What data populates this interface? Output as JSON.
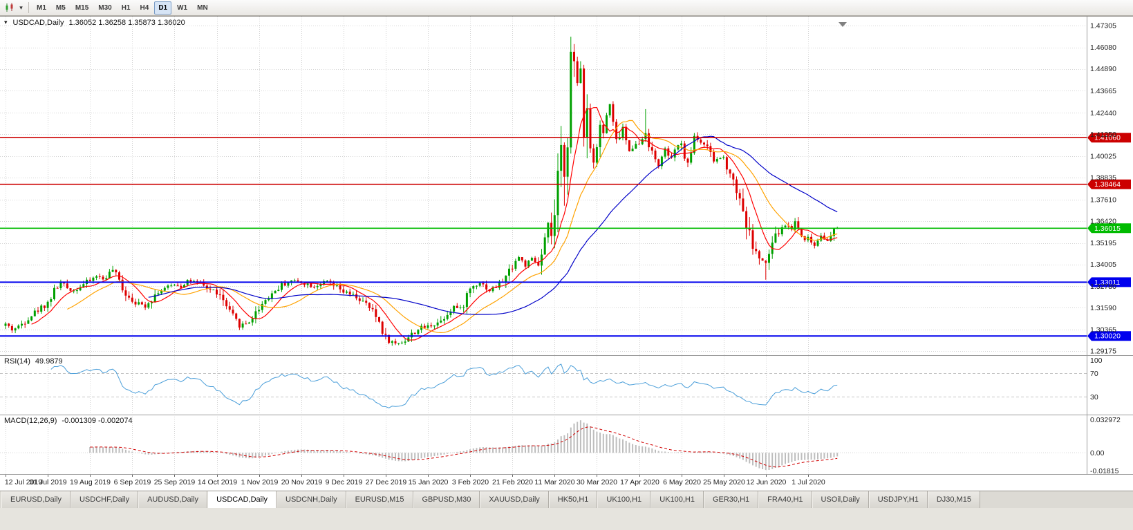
{
  "glyphs": {
    "caret_down": "▾"
  },
  "toolbar": {
    "timeframes": [
      {
        "label": "M1",
        "active": false
      },
      {
        "label": "M5",
        "active": false
      },
      {
        "label": "M15",
        "active": false
      },
      {
        "label": "M30",
        "active": false
      },
      {
        "label": "H1",
        "active": false
      },
      {
        "label": "H4",
        "active": false
      },
      {
        "label": "D1",
        "active": true
      },
      {
        "label": "W1",
        "active": false
      },
      {
        "label": "MN",
        "active": false
      }
    ]
  },
  "chart_data": {
    "type": "candlestick",
    "symbol_period": "USDCAD,Daily",
    "ohlc_text": "1.36052 1.36258 1.35873 1.36020",
    "x_ticks": [
      "12 Jul 2019",
      "31 Jul 2019",
      "19 Aug 2019",
      "6 Sep 2019",
      "25 Sep 2019",
      "14 Oct 2019",
      "1 Nov 2019",
      "20 Nov 2019",
      "9 Dec 2019",
      "27 Dec 2019",
      "15 Jan 2020",
      "3 Feb 2020",
      "21 Feb 2020",
      "11 Mar 2020",
      "30 Mar 2020",
      "17 Apr 2020",
      "6 May 2020",
      "25 May 2020",
      "12 Jun 2020",
      "1 Jul 2020"
    ],
    "y_ticks": [
      "1.47305",
      "1.46080",
      "1.44890",
      "1.43665",
      "1.42440",
      "1.41250",
      "1.40025",
      "1.38835",
      "1.37610",
      "1.36420",
      "1.35195",
      "1.34005",
      "1.32780",
      "1.31590",
      "1.30365",
      "1.29175"
    ],
    "y_range": [
      1.2895,
      1.478
    ],
    "candle_count": 257,
    "seed": 42,
    "vol_base": 0.0016,
    "vol_mult": 1.0,
    "close_anchors": [
      [
        0,
        1.3068
      ],
      [
        2,
        1.3038
      ],
      [
        4,
        1.3052
      ],
      [
        7,
        1.3105
      ],
      [
        10,
        1.3148
      ],
      [
        13,
        1.3188
      ],
      [
        15,
        1.3252
      ],
      [
        17,
        1.33
      ],
      [
        19,
        1.327
      ],
      [
        21,
        1.3255
      ],
      [
        24,
        1.329
      ],
      [
        26,
        1.331
      ],
      [
        28,
        1.3338
      ],
      [
        30,
        1.3318
      ],
      [
        33,
        1.337
      ],
      [
        35,
        1.3305
      ],
      [
        37,
        1.324
      ],
      [
        39,
        1.3205
      ],
      [
        41,
        1.318
      ],
      [
        43,
        1.3172
      ],
      [
        45,
        1.321
      ],
      [
        47,
        1.325
      ],
      [
        50,
        1.3272
      ],
      [
        52,
        1.3292
      ],
      [
        54,
        1.3278
      ],
      [
        56,
        1.3312
      ],
      [
        58,
        1.33
      ],
      [
        60,
        1.329
      ],
      [
        62,
        1.3268
      ],
      [
        65,
        1.3245
      ],
      [
        67,
        1.3195
      ],
      [
        69,
        1.313
      ],
      [
        71,
        1.3085
      ],
      [
        72,
        1.3062
      ],
      [
        74,
        1.3072
      ],
      [
        75,
        1.3085
      ],
      [
        77,
        1.313
      ],
      [
        78,
        1.316
      ],
      [
        80,
        1.3205
      ],
      [
        83,
        1.3255
      ],
      [
        85,
        1.3285
      ],
      [
        88,
        1.331
      ],
      [
        91,
        1.3302
      ],
      [
        93,
        1.329
      ],
      [
        95,
        1.3278
      ],
      [
        97,
        1.3295
      ],
      [
        99,
        1.3302
      ],
      [
        101,
        1.328
      ],
      [
        104,
        1.3246
      ],
      [
        106,
        1.3232
      ],
      [
        108,
        1.3218
      ],
      [
        110,
        1.319
      ],
      [
        112,
        1.3158
      ],
      [
        114,
        1.311
      ],
      [
        115,
        1.308
      ],
      [
        117,
        1.2992
      ],
      [
        119,
        1.2968
      ],
      [
        120,
        1.2958
      ],
      [
        122,
        1.2972
      ],
      [
        123,
        1.2978
      ],
      [
        125,
        1.301
      ],
      [
        127,
        1.304
      ],
      [
        130,
        1.3056
      ],
      [
        132,
        1.307
      ],
      [
        134,
        1.3088
      ],
      [
        136,
        1.313
      ],
      [
        138,
        1.3168
      ],
      [
        140,
        1.3145
      ],
      [
        141,
        1.3185
      ],
      [
        143,
        1.3268
      ],
      [
        146,
        1.3302
      ],
      [
        148,
        1.327
      ],
      [
        149,
        1.3255
      ],
      [
        151,
        1.3278
      ],
      [
        152,
        1.3292
      ],
      [
        154,
        1.333
      ],
      [
        156,
        1.3398
      ],
      [
        158,
        1.3442
      ],
      [
        160,
        1.3395
      ],
      [
        162,
        1.343
      ],
      [
        164,
        1.3395
      ],
      [
        165,
        1.344
      ],
      [
        166,
        1.353
      ],
      [
        167,
        1.36
      ],
      [
        168,
        1.356
      ],
      [
        169,
        1.366
      ],
      [
        170,
        1.386
      ],
      [
        171,
        1.402
      ],
      [
        172,
        1.396
      ],
      [
        173,
        1.412
      ],
      [
        174,
        1.456
      ],
      [
        175,
        1.449
      ],
      [
        176,
        1.439
      ],
      [
        177,
        1.45
      ],
      [
        178,
        1.415
      ],
      [
        179,
        1.429
      ],
      [
        180,
        1.405
      ],
      [
        181,
        1.399
      ],
      [
        182,
        1.4062
      ],
      [
        183,
        1.418
      ],
      [
        184,
        1.412
      ],
      [
        185,
        1.423
      ],
      [
        186,
        1.429
      ],
      [
        187,
        1.418
      ],
      [
        188,
        1.408
      ],
      [
        190,
        1.416
      ],
      [
        192,
        1.402
      ],
      [
        194,
        1.409
      ],
      [
        195,
        1.406
      ],
      [
        197,
        1.414
      ],
      [
        199,
        1.401
      ],
      [
        201,
        1.3955
      ],
      [
        203,
        1.4035
      ],
      [
        205,
        1.3985
      ],
      [
        207,
        1.407
      ],
      [
        208,
        1.4055
      ],
      [
        210,
        1.395
      ],
      [
        212,
        1.4115
      ],
      [
        214,
        1.4085
      ],
      [
        215,
        1.407
      ],
      [
        217,
        1.401
      ],
      [
        218,
        1.3975
      ],
      [
        220,
        1.3995
      ],
      [
        221,
        1.399
      ],
      [
        223,
        1.392
      ],
      [
        224,
        1.386
      ],
      [
        226,
        1.378
      ],
      [
        227,
        1.37
      ],
      [
        229,
        1.356
      ],
      [
        231,
        1.346
      ],
      [
        233,
        1.342
      ],
      [
        234,
        1.3395
      ],
      [
        236,
        1.352
      ],
      [
        238,
        1.358
      ],
      [
        240,
        1.362
      ],
      [
        242,
        1.36
      ],
      [
        243,
        1.364
      ],
      [
        245,
        1.356
      ],
      [
        247,
        1.3545
      ],
      [
        249,
        1.3505
      ],
      [
        251,
        1.357
      ],
      [
        253,
        1.3525
      ],
      [
        255,
        1.3585
      ],
      [
        256,
        1.3602
      ]
    ],
    "wick_overrides": [
      {
        "i": 33,
        "high": 1.3392
      },
      {
        "i": 120,
        "low": 1.2951
      },
      {
        "i": 174,
        "high": 1.4668
      },
      {
        "i": 197,
        "high": 1.4265
      },
      {
        "i": 234,
        "low": 1.3315
      },
      {
        "i": 256,
        "close": 1.3602
      }
    ],
    "moving_averages": [
      {
        "period": 9,
        "color": "#FF0000"
      },
      {
        "period": 20,
        "color": "#FFA200"
      },
      {
        "period": 45,
        "color": "#0000C8"
      }
    ],
    "levels": [
      {
        "price": 1.4106,
        "label": "1.41060",
        "color": "#CC0000",
        "width": 1.6,
        "text_color": "#ffffff"
      },
      {
        "price": 1.38464,
        "label": "1.38464",
        "color": "#CC0000",
        "width": 1.6,
        "text_color": "#ffffff"
      },
      {
        "price": 1.36015,
        "label": "1.36015",
        "color": "#00BB00",
        "width": 1.6,
        "text_color": "#ffffff"
      },
      {
        "price": 1.33011,
        "label": "1.33011",
        "color": "#0000EE",
        "width": 2,
        "text_color": "#ffffff"
      },
      {
        "price": 1.3002,
        "label": "1.30020",
        "color": "#0000EE",
        "width": 2,
        "text_color": "#ffffff"
      }
    ],
    "indicators": {
      "rsi": {
        "label": "RSI(14)",
        "value": "49.9879",
        "period": 14,
        "color": "#4A9ED9",
        "guides": [
          70,
          30
        ],
        "axis": [
          {
            "v": 100,
            "label": "100"
          },
          {
            "v": 70,
            "label": "70"
          },
          {
            "v": 30,
            "label": "30"
          }
        ]
      },
      "macd": {
        "label": "MACD(12,26,9)",
        "values": "-0.001309 -0.002074",
        "fast": 12,
        "slow": 26,
        "signal": 9,
        "scale": {
          "min": -0.0195,
          "max": 0.0345
        },
        "axis": [
          {
            "v": 0.032972,
            "label": "0.032972"
          },
          {
            "v": 0,
            "label": "0.00"
          },
          {
            "v": -0.01815,
            "label": "-0.01815"
          }
        ]
      }
    },
    "colors": {
      "grid": "#d4d4d4",
      "bull": "#00A000",
      "bear": "#DD0000",
      "separator": "#9a9a9a",
      "axis_text": "#222222",
      "macd_hist": "#BDBDBD",
      "macd_signal": "#D00000",
      "shift_marker": "#808080"
    }
  },
  "tab_bar": {
    "tabs": [
      {
        "label": "EURUSD,Daily",
        "active": false
      },
      {
        "label": "USDCHF,Daily",
        "active": false
      },
      {
        "label": "AUDUSD,Daily",
        "active": false
      },
      {
        "label": "USDCAD,Daily",
        "active": true
      },
      {
        "label": "USDCNH,Daily",
        "active": false
      },
      {
        "label": "EURUSD,M15",
        "active": false
      },
      {
        "label": "GBPUSD,M30",
        "active": false
      },
      {
        "label": "XAUUSD,Daily",
        "active": false
      },
      {
        "label": "HK50,H1",
        "active": false
      },
      {
        "label": "UK100,H1",
        "active": false
      },
      {
        "label": "UK100,H1",
        "active": false
      },
      {
        "label": "GER30,H1",
        "active": false
      },
      {
        "label": "FRA40,H1",
        "active": false
      },
      {
        "label": "USOil,Daily",
        "active": false
      },
      {
        "label": "USDJPY,H1",
        "active": false
      },
      {
        "label": "DJ30,M15",
        "active": false
      }
    ]
  }
}
